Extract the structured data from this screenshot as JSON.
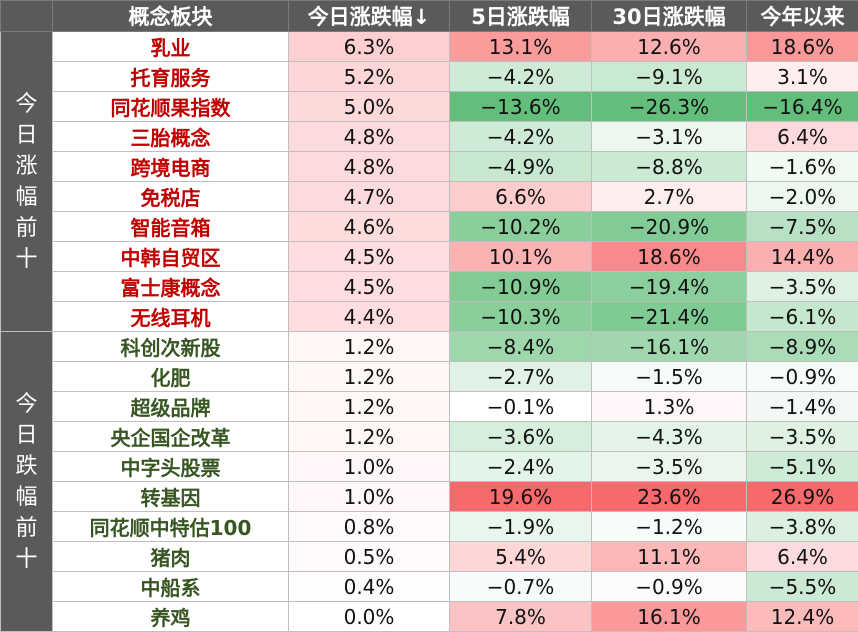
{
  "table": {
    "headers": [
      "概念板块",
      "今日涨跌幅↓",
      "5日涨跌幅",
      "30日涨跌幅",
      "今年以来"
    ],
    "colors": {
      "header_bg": "#5a5a5a",
      "top_name_color": "#c00000",
      "bottom_name_color": "#375623",
      "positive_color": "#f8696b",
      "negative_color": "#63be7b",
      "neutral_color": "#ffffff"
    },
    "groups": [
      {
        "label": "今日涨幅前十",
        "name_style": "top",
        "rows": [
          {
            "name": "乳业",
            "values": [
              "6.3%",
              "13.1%",
              "12.6%",
              "18.6%"
            ],
            "nums": [
              6.3,
              13.1,
              12.6,
              18.6
            ]
          },
          {
            "name": "托育服务",
            "values": [
              "5.2%",
              "−4.2%",
              "−9.1%",
              "3.1%"
            ],
            "nums": [
              5.2,
              -4.2,
              -9.1,
              3.1
            ]
          },
          {
            "name": "同花顺果指数",
            "values": [
              "5.0%",
              "−13.6%",
              "−26.3%",
              "−16.4%"
            ],
            "nums": [
              5.0,
              -13.6,
              -26.3,
              -16.4
            ]
          },
          {
            "name": "三胎概念",
            "values": [
              "4.8%",
              "−4.2%",
              "−3.1%",
              "6.4%"
            ],
            "nums": [
              4.8,
              -4.2,
              -3.1,
              6.4
            ]
          },
          {
            "name": "跨境电商",
            "values": [
              "4.8%",
              "−4.9%",
              "−8.8%",
              "−1.6%"
            ],
            "nums": [
              4.8,
              -4.9,
              -8.8,
              -1.6
            ]
          },
          {
            "name": "免税店",
            "values": [
              "4.7%",
              "6.6%",
              "2.7%",
              "−2.0%"
            ],
            "nums": [
              4.7,
              6.6,
              2.7,
              -2.0
            ]
          },
          {
            "name": "智能音箱",
            "values": [
              "4.6%",
              "−10.2%",
              "−20.9%",
              "−7.5%"
            ],
            "nums": [
              4.6,
              -10.2,
              -20.9,
              -7.5
            ]
          },
          {
            "name": "中韩自贸区",
            "values": [
              "4.5%",
              "10.1%",
              "18.6%",
              "14.4%"
            ],
            "nums": [
              4.5,
              10.1,
              18.6,
              14.4
            ]
          },
          {
            "name": "富士康概念",
            "values": [
              "4.5%",
              "−10.9%",
              "−19.4%",
              "−3.5%"
            ],
            "nums": [
              4.5,
              -10.9,
              -19.4,
              -3.5
            ]
          },
          {
            "name": "无线耳机",
            "values": [
              "4.4%",
              "−10.3%",
              "−21.4%",
              "−6.1%"
            ],
            "nums": [
              4.4,
              -10.3,
              -21.4,
              -6.1
            ]
          }
        ]
      },
      {
        "label": "今日跌幅前十",
        "name_style": "bottom",
        "rows": [
          {
            "name": "科创次新股",
            "values": [
              "1.2%",
              "−8.4%",
              "−16.1%",
              "−8.9%"
            ],
            "nums": [
              1.2,
              -8.4,
              -16.1,
              -8.9
            ]
          },
          {
            "name": "化肥",
            "values": [
              "1.2%",
              "−2.7%",
              "−1.5%",
              "−0.9%"
            ],
            "nums": [
              1.2,
              -2.7,
              -1.5,
              -0.9
            ]
          },
          {
            "name": "超级品牌",
            "values": [
              "1.2%",
              "−0.1%",
              "1.3%",
              "−1.4%"
            ],
            "nums": [
              1.2,
              -0.1,
              1.3,
              -1.4
            ]
          },
          {
            "name": "央企国企改革",
            "values": [
              "1.2%",
              "−3.6%",
              "−4.3%",
              "−3.5%"
            ],
            "nums": [
              1.2,
              -3.6,
              -4.3,
              -3.5
            ]
          },
          {
            "name": "中字头股票",
            "values": [
              "1.0%",
              "−2.4%",
              "−3.5%",
              "−5.1%"
            ],
            "nums": [
              1.0,
              -2.4,
              -3.5,
              -5.1
            ]
          },
          {
            "name": "转基因",
            "values": [
              "1.0%",
              "19.6%",
              "23.6%",
              "26.9%"
            ],
            "nums": [
              1.0,
              19.6,
              23.6,
              26.9
            ]
          },
          {
            "name": "同花顺中特估100",
            "values": [
              "0.8%",
              "−1.9%",
              "−1.2%",
              "−3.8%"
            ],
            "nums": [
              0.8,
              -1.9,
              -1.2,
              -3.8
            ]
          },
          {
            "name": "猪肉",
            "values": [
              "0.5%",
              "5.4%",
              "11.1%",
              "6.4%"
            ],
            "nums": [
              0.5,
              5.4,
              11.1,
              6.4
            ]
          },
          {
            "name": "中船系",
            "values": [
              "0.4%",
              "−0.7%",
              "−0.9%",
              "−5.5%"
            ],
            "nums": [
              0.4,
              -0.7,
              -0.9,
              -5.5
            ]
          },
          {
            "name": "养鸡",
            "values": [
              "0.0%",
              "7.8%",
              "16.1%",
              "12.4%"
            ],
            "nums": [
              0.0,
              7.8,
              16.1,
              12.4
            ]
          }
        ]
      }
    ]
  },
  "chart_data": {
    "type": "table",
    "columns": [
      "概念板块",
      "今日涨跌幅↓",
      "5日涨跌幅",
      "30日涨跌幅",
      "今年以来"
    ],
    "row_groups": [
      "今日涨幅前十",
      "今日跌幅前十"
    ],
    "rows": [
      [
        "乳业",
        6.3,
        13.1,
        12.6,
        18.6
      ],
      [
        "托育服务",
        5.2,
        -4.2,
        -9.1,
        3.1
      ],
      [
        "同花顺果指数",
        5.0,
        -13.6,
        -26.3,
        -16.4
      ],
      [
        "三胎概念",
        4.8,
        -4.2,
        -3.1,
        6.4
      ],
      [
        "跨境电商",
        4.8,
        -4.9,
        -8.8,
        -1.6
      ],
      [
        "免税店",
        4.7,
        6.6,
        2.7,
        -2.0
      ],
      [
        "智能音箱",
        4.6,
        -10.2,
        -20.9,
        -7.5
      ],
      [
        "中韩自贸区",
        4.5,
        10.1,
        18.6,
        14.4
      ],
      [
        "富士康概念",
        4.5,
        -10.9,
        -19.4,
        -3.5
      ],
      [
        "无线耳机",
        4.4,
        -10.3,
        -21.4,
        -6.1
      ],
      [
        "科创次新股",
        1.2,
        -8.4,
        -16.1,
        -8.9
      ],
      [
        "化肥",
        1.2,
        -2.7,
        -1.5,
        -0.9
      ],
      [
        "超级品牌",
        1.2,
        -0.1,
        1.3,
        -1.4
      ],
      [
        "央企国企改革",
        1.2,
        -3.6,
        -4.3,
        -3.5
      ],
      [
        "中字头股票",
        1.0,
        -2.4,
        -3.5,
        -5.1
      ],
      [
        "转基因",
        1.0,
        19.6,
        23.6,
        26.9
      ],
      [
        "同花顺中特估100",
        0.8,
        -1.9,
        -1.2,
        -3.8
      ],
      [
        "猪肉",
        0.5,
        5.4,
        11.1,
        6.4
      ],
      [
        "中船系",
        0.4,
        -0.7,
        -0.9,
        -5.5
      ],
      [
        "养鸡",
        0.0,
        7.8,
        16.1,
        12.4
      ]
    ],
    "units": "%"
  }
}
